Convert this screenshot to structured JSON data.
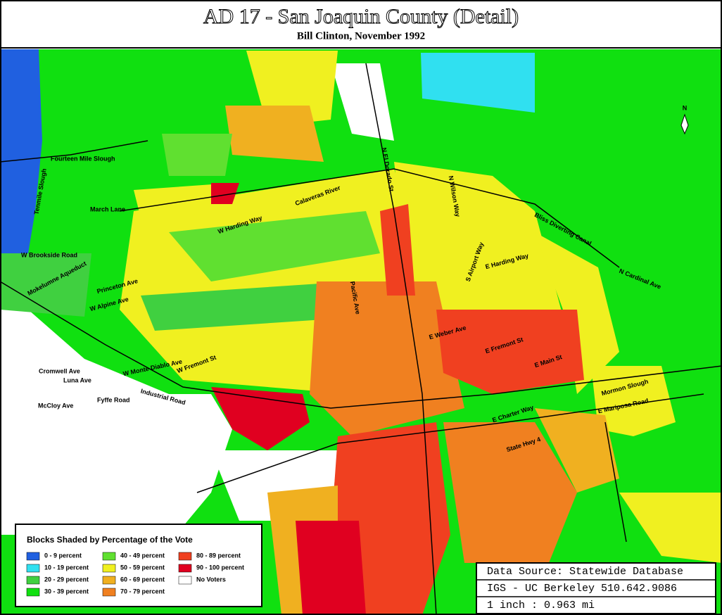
{
  "header": {
    "title": "AD 17 - San Joaquin County (Detail)",
    "subtitle": "Bill Clinton, November 1992"
  },
  "north": "N",
  "legend": {
    "title": "Blocks Shaded by Percentage of the Vote",
    "items": [
      {
        "label": "0 - 9 percent",
        "color": "#2060e0"
      },
      {
        "label": "10 - 19 percent",
        "color": "#30e0f0"
      },
      {
        "label": "20 - 29 percent",
        "color": "#40d040"
      },
      {
        "label": "30 - 39 percent",
        "color": "#10e010"
      },
      {
        "label": "40 - 49 percent",
        "color": "#60e030"
      },
      {
        "label": "50 - 59 percent",
        "color": "#f0f020"
      },
      {
        "label": "60 - 69 percent",
        "color": "#f0b020"
      },
      {
        "label": "70 - 79 percent",
        "color": "#f08020"
      },
      {
        "label": "80 - 89 percent",
        "color": "#f04020"
      },
      {
        "label": "90 - 100 percent",
        "color": "#e00020"
      },
      {
        "label": "No Voters",
        "color": "#ffffff"
      }
    ]
  },
  "source": {
    "lines": [
      "Data Source: Statewide Database",
      "IGS - UC Berkeley 510.642.9086",
      "1 inch : 0.963 mi"
    ]
  },
  "streets": [
    "Fourteen Mile Slough",
    "Tenmile Slough",
    "March Lane",
    "W Brookside Road",
    "Mokelumne Aqueduct",
    "Princeton Ave",
    "W Alpine Ave",
    "Cromwell Ave",
    "Luna Ave",
    "Fyffe Road",
    "McCloy Ave",
    "Industrial Road",
    "W Monte Diablo Ave",
    "W Fremont St",
    "W Harding Way",
    "N El Dorado St",
    "N Wilson Way",
    "E Fremont St",
    "E Main St",
    "E Weber Ave",
    "E Charter Way",
    "State Hwy 4",
    "E Mariposa Road",
    "N Cardinal Ave",
    "Bliss Diverting Canal",
    "Mormon Slough",
    "S Airport Way",
    "Calaveras River",
    "Pacific Ave",
    "E Harding Way"
  ]
}
